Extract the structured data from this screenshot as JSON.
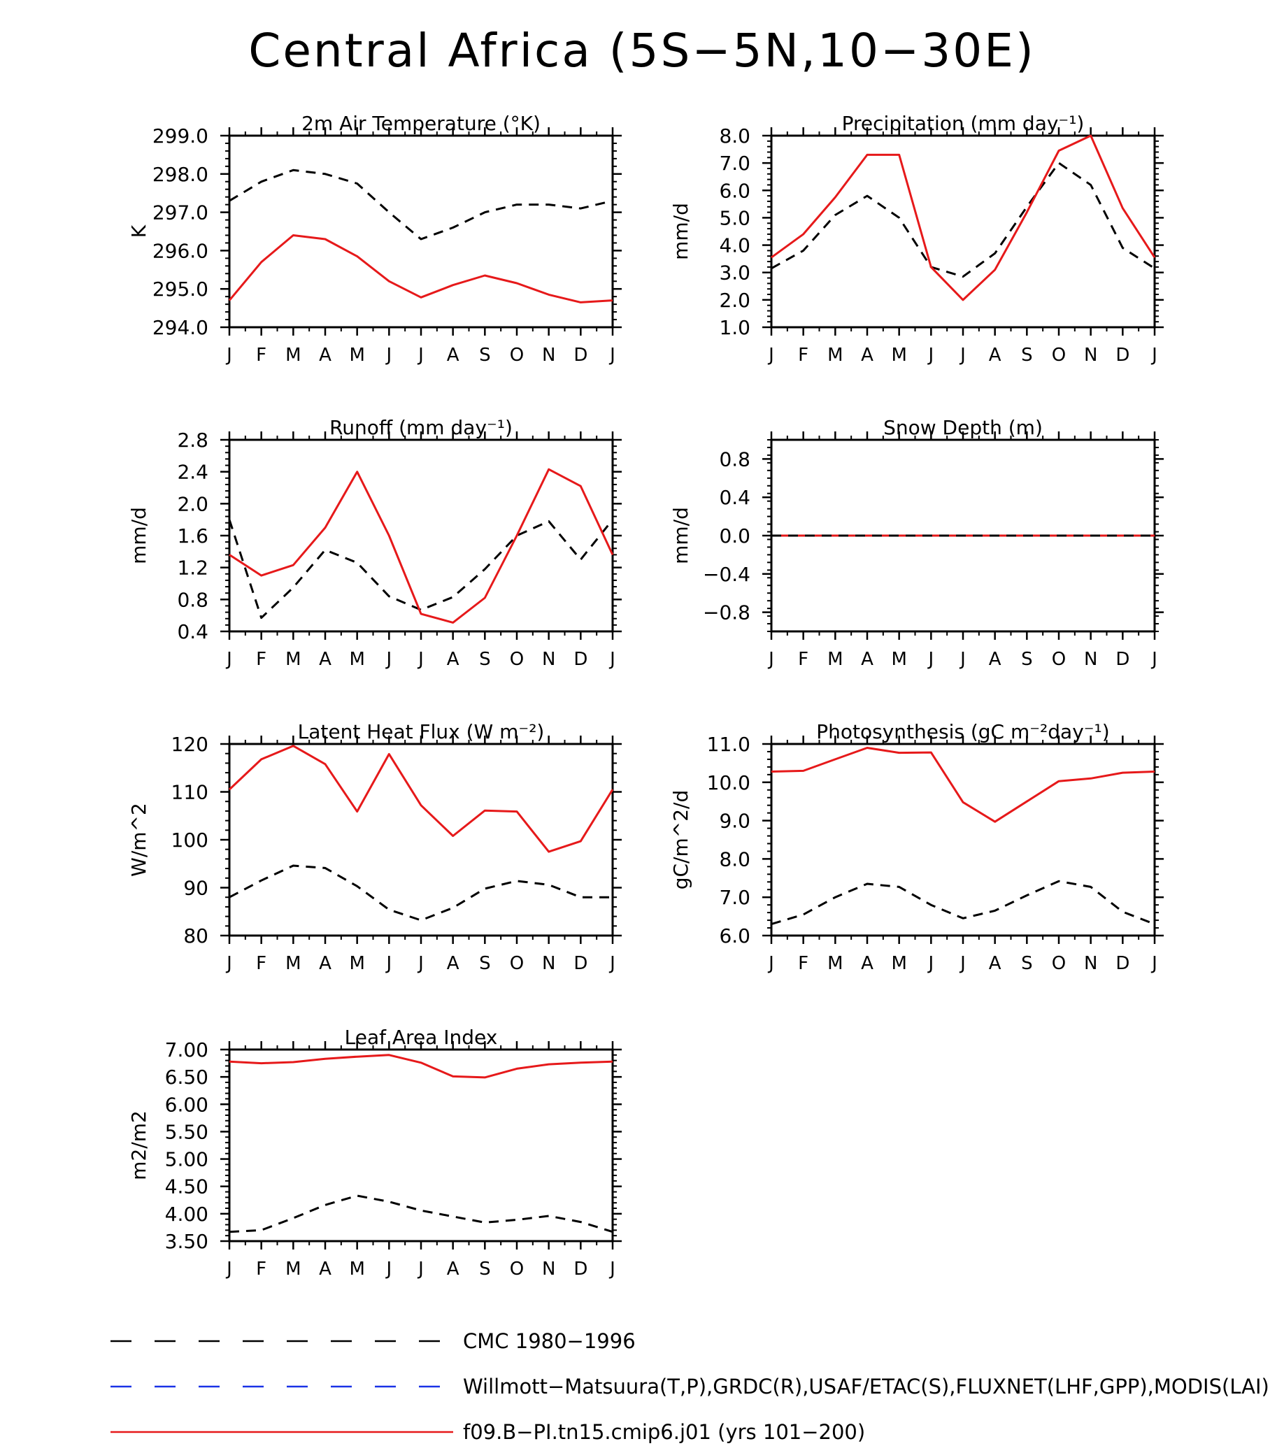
{
  "title": "Central Africa (5S−5N,10−30E)",
  "months": [
    "J",
    "F",
    "M",
    "A",
    "M",
    "J",
    "J",
    "A",
    "S",
    "O",
    "N",
    "D",
    "J"
  ],
  "colors": {
    "cmc": "#000000",
    "obs": "#1a33e6",
    "model": "#e6191a"
  },
  "legend": [
    {
      "key": "cmc",
      "label": "CMC 1980−1996",
      "style": "dashed"
    },
    {
      "key": "obs",
      "label": "Willmott−Matsuura(T,P),GRDC(R),USAF/ETAC(S),FLUXNET(LHF,GPP),MODIS(LAI)",
      "style": "dashed"
    },
    {
      "key": "model",
      "label": "f09.B−PI.tn15.cmip6.j01 (yrs 101−200)",
      "style": "solid"
    }
  ],
  "chart_data": [
    {
      "type": "line",
      "title": "2m Air Temperature (°K)",
      "ylabel": "K",
      "ylim": [
        294.0,
        299.0
      ],
      "yticks": [
        294,
        295,
        296,
        297,
        298,
        299
      ],
      "ytick_labels": [
        "294.0",
        "295.0",
        "296.0",
        "297.0",
        "298.0",
        "299.0"
      ],
      "series": [
        {
          "key": "cmc",
          "values": [
            297.3,
            297.8,
            298.1,
            298.0,
            297.75,
            297.0,
            296.3,
            296.6,
            297.0,
            297.2,
            297.2,
            297.1,
            297.3
          ]
        },
        {
          "key": "model",
          "values": [
            294.7,
            295.7,
            296.4,
            296.3,
            295.85,
            295.2,
            294.78,
            295.1,
            295.35,
            295.15,
            294.85,
            294.65,
            294.7
          ]
        }
      ]
    },
    {
      "type": "line",
      "title": "Precipitation (mm day⁻¹)",
      "ylabel": "mm/d",
      "ylim": [
        1.0,
        8.0
      ],
      "yticks": [
        1,
        2,
        3,
        4,
        5,
        6,
        7,
        8
      ],
      "ytick_labels": [
        "1.0",
        "2.0",
        "3.0",
        "4.0",
        "5.0",
        "6.0",
        "7.0",
        "8.0"
      ],
      "series": [
        {
          "key": "cmc",
          "values": [
            3.15,
            3.8,
            5.1,
            5.8,
            5.0,
            3.2,
            2.85,
            3.7,
            5.4,
            7.0,
            6.2,
            3.9,
            3.15
          ]
        },
        {
          "key": "model",
          "values": [
            3.55,
            4.4,
            5.75,
            7.3,
            7.3,
            3.2,
            2.0,
            3.1,
            5.2,
            7.45,
            8.0,
            5.35,
            3.55
          ]
        }
      ]
    },
    {
      "type": "line",
      "title": "Runoff (mm day⁻¹)",
      "ylabel": "mm/d",
      "ylim": [
        0.4,
        2.8
      ],
      "yticks": [
        0.4,
        0.8,
        1.2,
        1.6,
        2.0,
        2.4,
        2.8
      ],
      "ytick_labels": [
        "0.4",
        "0.8",
        "1.2",
        "1.6",
        "2.0",
        "2.4",
        "2.8"
      ],
      "series": [
        {
          "key": "cmc",
          "values": [
            1.8,
            0.57,
            0.95,
            1.42,
            1.26,
            0.84,
            0.67,
            0.83,
            1.18,
            1.6,
            1.78,
            1.3,
            1.8
          ]
        },
        {
          "key": "model",
          "values": [
            1.36,
            1.1,
            1.23,
            1.7,
            2.4,
            1.6,
            0.62,
            0.51,
            0.82,
            1.6,
            2.43,
            2.22,
            1.36
          ]
        }
      ]
    },
    {
      "type": "line",
      "title": "Snow Depth (m)",
      "ylabel": "mm/d",
      "ylim": [
        -1.0,
        1.0
      ],
      "yticks": [
        -0.8,
        -0.4,
        0.0,
        0.4,
        0.8
      ],
      "ytick_labels": [
        "−0.8",
        "−0.4",
        "0.0",
        "0.4",
        "0.8"
      ],
      "series": [
        {
          "key": "model",
          "values": [
            0,
            0,
            0,
            0,
            0,
            0,
            0,
            0,
            0,
            0,
            0,
            0,
            0
          ]
        },
        {
          "key": "cmc",
          "values": [
            0,
            0,
            0,
            0,
            0,
            0,
            0,
            0,
            0,
            0,
            0,
            0,
            0
          ]
        }
      ]
    },
    {
      "type": "line",
      "title": "Latent Heat Flux (W m⁻²)",
      "ylabel": "W/m^2",
      "ylim": [
        80,
        120
      ],
      "yticks": [
        80,
        90,
        100,
        110,
        120
      ],
      "ytick_labels": [
        "80",
        "90",
        "100",
        "110",
        "120"
      ],
      "series": [
        {
          "key": "cmc",
          "values": [
            88,
            91.5,
            94.6,
            94.1,
            90.3,
            85.4,
            83.2,
            85.8,
            89.8,
            91.4,
            90.6,
            88,
            88
          ]
        },
        {
          "key": "model",
          "values": [
            110.5,
            116.8,
            119.6,
            115.8,
            105.9,
            117.9,
            107.2,
            100.8,
            106.1,
            105.9,
            97.5,
            99.7,
            110.5
          ]
        }
      ]
    },
    {
      "type": "line",
      "title": "Photosynthesis (gC m⁻²day⁻¹)",
      "ylabel": "gC/m^2/d",
      "ylim": [
        6.0,
        11.0
      ],
      "yticks": [
        6,
        7,
        8,
        9,
        10,
        11
      ],
      "ytick_labels": [
        "6.0",
        "7.0",
        "8.0",
        "9.0",
        "10.0",
        "11.0"
      ],
      "series": [
        {
          "key": "cmc",
          "values": [
            6.3,
            6.55,
            7.0,
            7.35,
            7.27,
            6.8,
            6.45,
            6.65,
            7.05,
            7.42,
            7.27,
            6.62,
            6.3
          ]
        },
        {
          "key": "model",
          "values": [
            10.28,
            10.3,
            10.6,
            10.9,
            10.77,
            10.78,
            9.48,
            8.97,
            9.5,
            10.03,
            10.1,
            10.25,
            10.28
          ]
        }
      ]
    },
    {
      "type": "line",
      "title": "Leaf Area Index",
      "ylabel": "m2/m2",
      "ylim": [
        3.5,
        7.0
      ],
      "yticks": [
        3.5,
        4.0,
        4.5,
        5.0,
        5.5,
        6.0,
        6.5,
        7.0
      ],
      "ytick_labels": [
        "3.50",
        "4.00",
        "4.50",
        "5.00",
        "5.50",
        "6.00",
        "6.50",
        "7.00"
      ],
      "series": [
        {
          "key": "cmc",
          "values": [
            3.67,
            3.7,
            3.92,
            4.16,
            4.33,
            4.22,
            4.06,
            3.95,
            3.84,
            3.89,
            3.96,
            3.85,
            3.67
          ]
        },
        {
          "key": "model",
          "values": [
            6.78,
            6.75,
            6.77,
            6.83,
            6.87,
            6.9,
            6.76,
            6.51,
            6.49,
            6.65,
            6.73,
            6.76,
            6.78
          ]
        }
      ]
    }
  ]
}
